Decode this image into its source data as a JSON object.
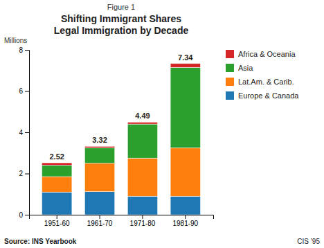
{
  "chart_data": {
    "type": "bar",
    "stacked": true,
    "grid": false,
    "legend": "right",
    "title": "Shifting Immigrant Shares\nLegal Immigration by Decade",
    "ylabel": "Millions",
    "annotations": [
      "Figure 1",
      "Source:  INS Yearbook",
      "CIS ’95"
    ],
    "categories": [
      "1951-60",
      "1961-70",
      "1971-80",
      "1981-90"
    ],
    "series": [
      {
        "name": "Europe & Canada",
        "values": [
          1.1,
          1.12,
          0.9,
          0.9
        ]
      },
      {
        "name": "Lat.Am. & Carib.",
        "values": [
          0.75,
          1.38,
          1.85,
          2.35
        ]
      },
      {
        "name": "Asia",
        "values": [
          0.55,
          0.75,
          1.65,
          3.9
        ]
      },
      {
        "name": "Africa & Oceania",
        "values": [
          0.12,
          0.07,
          0.09,
          0.19
        ]
      }
    ],
    "totals": [
      2.52,
      3.32,
      4.49,
      7.34
    ],
    "ylim": [
      0,
      8
    ],
    "yticks": [
      0,
      2,
      4,
      6,
      8
    ]
  }
}
